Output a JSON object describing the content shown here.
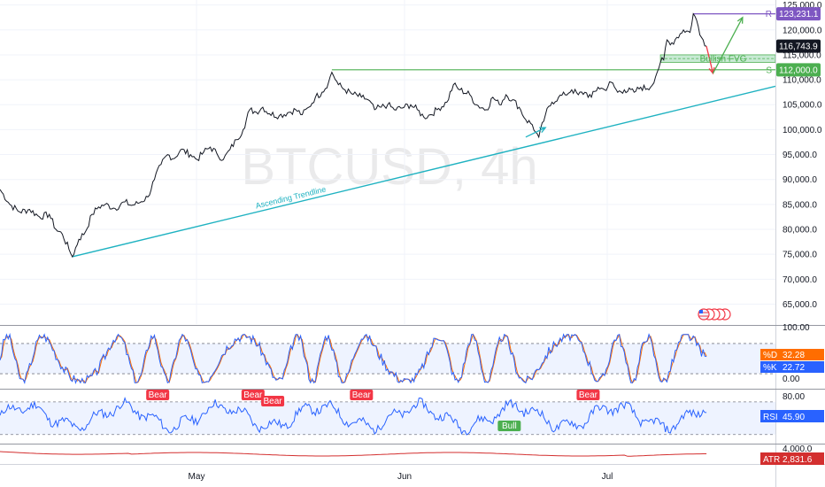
{
  "chart_data": {
    "type": "line",
    "symbol": "BTCUSD",
    "timeframe": "4h",
    "watermark": "BTCUSD, 4h",
    "colors": {
      "price": "#131722",
      "trendline": "#1fb2c1",
      "support": "#4caf50",
      "resistance": "#7e57c2",
      "fvg_fill": "#c8ead4",
      "stoch_k": "#2962ff",
      "stoch_d": "#ff6d00",
      "rsi": "#2962ff",
      "atr": "#d32f2f",
      "bear_tag": "#f23645",
      "bull_tag": "#4caf50"
    },
    "x_tick_labels": [
      "May",
      "Jun",
      "Jul"
    ],
    "main_panel": {
      "ylim": [
        61000,
        126000
      ],
      "y_ticks": [
        65000,
        70000,
        75000,
        80000,
        85000,
        90000,
        95000,
        100000,
        105000,
        110000,
        115000,
        120000,
        125000
      ],
      "y_tick_labels": [
        "65,000.0",
        "70,000.0",
        "75,000.0",
        "80,000.0",
        "85,000.0",
        "90,000.0",
        "95,000.0",
        "100,000.0",
        "105,000.0",
        "110,000.0",
        "115,000.0",
        "120,000.0",
        "125,000.0"
      ],
      "price_path": [
        [
          0,
          88000
        ],
        [
          3,
          85000
        ],
        [
          6,
          83500
        ],
        [
          9,
          84000
        ],
        [
          12,
          82500
        ],
        [
          15,
          83000
        ],
        [
          17,
          80000
        ],
        [
          19,
          79000
        ],
        [
          21,
          76000
        ],
        [
          22,
          74500
        ],
        [
          24,
          78000
        ],
        [
          26,
          79500
        ],
        [
          28,
          83000
        ],
        [
          30,
          84500
        ],
        [
          32,
          85000
        ],
        [
          35,
          84200
        ],
        [
          38,
          85500
        ],
        [
          40,
          84800
        ],
        [
          42,
          85200
        ],
        [
          45,
          86500
        ],
        [
          47,
          90000
        ],
        [
          49,
          93000
        ],
        [
          51,
          95000
        ],
        [
          53,
          94200
        ],
        [
          55,
          96000
        ],
        [
          58,
          95000
        ],
        [
          60,
          94000
        ],
        [
          62,
          95500
        ],
        [
          64,
          96500
        ],
        [
          66,
          95200
        ],
        [
          68,
          94000
        ],
        [
          70,
          96000
        ],
        [
          72,
          98000
        ],
        [
          74,
          100000
        ],
        [
          76,
          104000
        ],
        [
          78,
          103500
        ],
        [
          80,
          104500
        ],
        [
          82,
          103200
        ],
        [
          85,
          102800
        ],
        [
          88,
          103500
        ],
        [
          90,
          104000
        ],
        [
          92,
          103000
        ],
        [
          94,
          104500
        ],
        [
          96,
          106500
        ],
        [
          98,
          107500
        ],
        [
          100,
          109500
        ],
        [
          101,
          111500
        ],
        [
          103,
          109000
        ],
        [
          105,
          108000
        ],
        [
          107,
          107200
        ],
        [
          110,
          106500
        ],
        [
          112,
          106000
        ],
        [
          114,
          104000
        ],
        [
          116,
          104500
        ],
        [
          118,
          105000
        ],
        [
          120,
          104000
        ],
        [
          123,
          104500
        ],
        [
          125,
          105000
        ],
        [
          127,
          104000
        ],
        [
          129,
          102500
        ],
        [
          131,
          103000
        ],
        [
          133,
          104000
        ],
        [
          136,
          105500
        ],
        [
          138,
          109000
        ],
        [
          140,
          108000
        ],
        [
          143,
          107000
        ],
        [
          145,
          105000
        ],
        [
          148,
          104000
        ],
        [
          150,
          106500
        ],
        [
          152,
          105000
        ],
        [
          154,
          107000
        ],
        [
          156,
          106000
        ],
        [
          158,
          104500
        ],
        [
          160,
          102000
        ],
        [
          162,
          101000
        ],
        [
          163,
          99500
        ],
        [
          164,
          98500
        ],
        [
          166,
          103000
        ],
        [
          168,
          105500
        ],
        [
          170,
          106500
        ],
        [
          172,
          107000
        ],
        [
          174,
          108000
        ],
        [
          176,
          107000
        ],
        [
          178,
          107500
        ],
        [
          180,
          106500
        ],
        [
          182,
          108500
        ],
        [
          184,
          108000
        ],
        [
          186,
          109500
        ],
        [
          188,
          107500
        ],
        [
          190,
          108000
        ],
        [
          193,
          107500
        ],
        [
          195,
          108500
        ],
        [
          197,
          108200
        ],
        [
          198,
          108500
        ],
        [
          200,
          111500
        ],
        [
          201,
          113500
        ],
        [
          202,
          114000
        ],
        [
          203,
          118000
        ],
        [
          204,
          117000
        ],
        [
          206,
          118500
        ],
        [
          208,
          120000
        ],
        [
          210,
          119500
        ],
        [
          211,
          123231
        ],
        [
          212,
          122000
        ],
        [
          213,
          119000
        ],
        [
          214,
          118000
        ],
        [
          215,
          116744
        ]
      ],
      "price_tags": {
        "resistance": {
          "label": "R",
          "value": 123231.1,
          "text": "123,231.1"
        },
        "current": {
          "value": 116743.9,
          "text": "116,743.9"
        },
        "support": {
          "label": "S",
          "value": 112000.0,
          "text": "112,000.0"
        }
      },
      "fvg": {
        "label": "Bullish FVG",
        "low": 113500,
        "high": 115000
      },
      "trendline": {
        "label": "Ascending Trendline",
        "from": [
          22,
          74500
        ],
        "to": [
          236,
          108700
        ]
      },
      "support_line": {
        "from": [
          101,
          112000
        ],
        "to": [
          236,
          112000
        ]
      },
      "resistance_line": {
        "from": [
          211,
          123231
        ],
        "to": [
          236,
          123231
        ]
      }
    },
    "stoch_panel": {
      "ylim": [
        -8,
        115
      ],
      "y_tick_labels": [
        "100.00",
        "0.00"
      ],
      "band": [
        20,
        80
      ],
      "d_value": {
        "label": "%D",
        "text": "32.28"
      },
      "k_value": {
        "label": "%K",
        "text": "22.72"
      }
    },
    "rsi_panel": {
      "ylim": [
        20,
        85
      ],
      "y_tick_labels": [
        "80.00"
      ],
      "band": [
        30,
        70
      ],
      "value": {
        "label": "RSI",
        "text": "45.90"
      },
      "divergences": [
        {
          "type": "Bear",
          "x": 48
        },
        {
          "type": "Bear",
          "x": 77
        },
        {
          "type": "Bear",
          "x": 83
        },
        {
          "type": "Bear",
          "x": 110
        },
        {
          "type": "Bull",
          "x": 155
        },
        {
          "type": "Bear",
          "x": 179
        }
      ]
    },
    "atr_panel": {
      "y_tick_labels": [
        "4,000.0"
      ],
      "value": {
        "label": "ATR",
        "text": "2,831.6"
      }
    }
  }
}
